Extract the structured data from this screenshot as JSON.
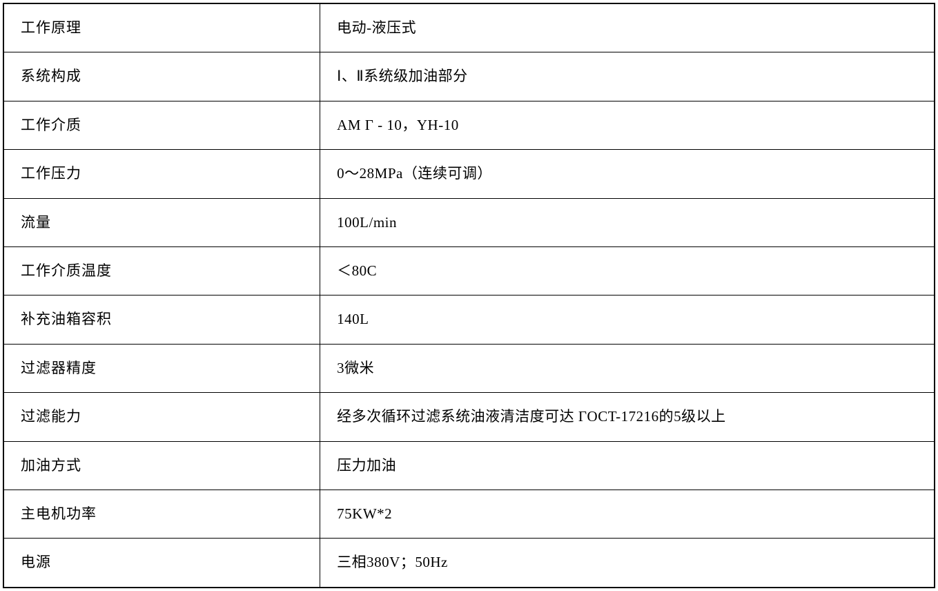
{
  "table": {
    "type": "table",
    "border_color": "#000000",
    "outer_border_width": 2,
    "inner_border_width": 1,
    "background_color": "#ffffff",
    "text_color": "#000000",
    "font_family": "SimSun",
    "font_size": 21,
    "cell_padding_vertical": 20,
    "cell_padding_horizontal": 24,
    "column_widths": [
      "34%",
      "66%"
    ],
    "rows": [
      {
        "label": "工作原理",
        "value": "电动-液压式"
      },
      {
        "label": "系统构成",
        "value": "Ⅰ、Ⅱ系统级加油部分"
      },
      {
        "label": "工作介质",
        "value": "AM Г - 10，YH-10"
      },
      {
        "label": "工作压力",
        "value": "0～28MPa（连续可调）"
      },
      {
        "label": "流量",
        "value": "100L/min"
      },
      {
        "label": "工作介质温度",
        "value": "＜80C"
      },
      {
        "label": "补充油箱容积",
        "value": "140L"
      },
      {
        "label": "过滤器精度",
        "value": "3微米"
      },
      {
        "label": "过滤能力",
        "value": "经多次循环过滤系统油液清洁度可达 ГOCT-17216的5级以上"
      },
      {
        "label": "加油方式",
        "value": "压力加油"
      },
      {
        "label": "主电机功率",
        "value": "75KW*2"
      },
      {
        "label": "电源",
        "value": "三相380V；50Hz"
      }
    ]
  }
}
